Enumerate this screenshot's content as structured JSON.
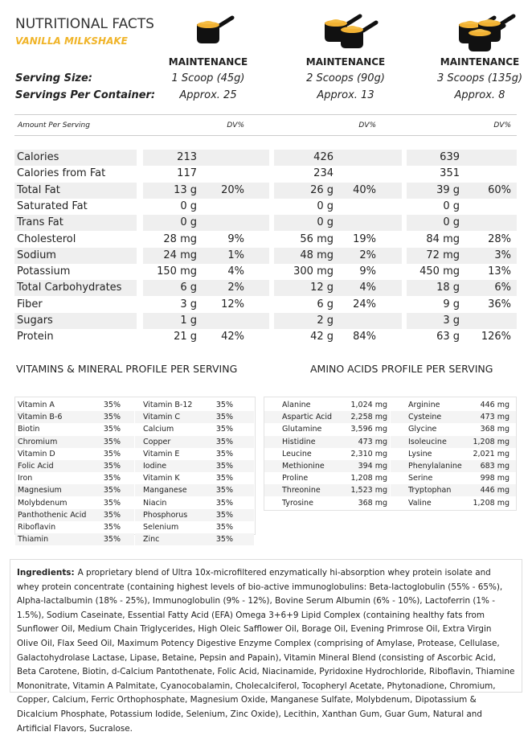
{
  "header": {
    "title": "NUTRITIONAL FACTS",
    "subtitle": "VANILLA MILKSHAKE"
  },
  "serving_labels": {
    "serving_size": "Serving Size:",
    "servings_per_container": "Servings Per Container:"
  },
  "columns": [
    {
      "label": "MAINTENANCE",
      "serving_size": "1 Scoop (45g)",
      "servings_per_container": "Approx. 25"
    },
    {
      "label": "MAINTENANCE",
      "serving_size": "2 Scoops (90g)",
      "servings_per_container": "Approx. 13"
    },
    {
      "label": "MAINTENANCE",
      "serving_size": "3 Scoops (135g)",
      "servings_per_container": "Approx. 8"
    }
  ],
  "facts": {
    "amount_header": "Amount Per Serving",
    "dv_headers": [
      "DV%",
      "DV%",
      "DV%"
    ],
    "rows": [
      {
        "name": "Calories",
        "values": [
          {
            "amount": "213"
          },
          {
            "amount": "426"
          },
          {
            "amount": "639"
          }
        ]
      },
      {
        "name": "Calories from Fat",
        "values": [
          {
            "amount": "117"
          },
          {
            "amount": "234"
          },
          {
            "amount": "351"
          }
        ]
      },
      {
        "name": "Total Fat",
        "values": [
          {
            "amount": "13 g",
            "dv": "20%"
          },
          {
            "amount": "26 g",
            "dv": "40%"
          },
          {
            "amount": "39 g",
            "dv": "60%"
          }
        ]
      },
      {
        "name": "Saturated Fat",
        "values": [
          {
            "amount": "0 g"
          },
          {
            "amount": "0 g"
          },
          {
            "amount": "0 g"
          }
        ]
      },
      {
        "name": "Trans Fat",
        "values": [
          {
            "amount": "0 g"
          },
          {
            "amount": "0 g"
          },
          {
            "amount": "0 g"
          }
        ]
      },
      {
        "name": "Cholesterol",
        "values": [
          {
            "amount": "28 mg",
            "dv": "9%"
          },
          {
            "amount": "56 mg",
            "dv": "19%"
          },
          {
            "amount": "84 mg",
            "dv": "28%"
          }
        ]
      },
      {
        "name": "Sodium",
        "values": [
          {
            "amount": "24 mg",
            "dv": "1%"
          },
          {
            "amount": "48 mg",
            "dv": "2%"
          },
          {
            "amount": "72 mg",
            "dv": "3%"
          }
        ]
      },
      {
        "name": "Potassium",
        "values": [
          {
            "amount": "150 mg",
            "dv": "4%"
          },
          {
            "amount": "300 mg",
            "dv": "9%"
          },
          {
            "amount": "450 mg",
            "dv": "13%"
          }
        ]
      },
      {
        "name": "Total Carbohydrates",
        "values": [
          {
            "amount": "6 g",
            "dv": "2%"
          },
          {
            "amount": "12 g",
            "dv": "4%"
          },
          {
            "amount": "18 g",
            "dv": "6%"
          }
        ]
      },
      {
        "name": "Fiber",
        "values": [
          {
            "amount": "3 g",
            "dv": "12%"
          },
          {
            "amount": "6 g",
            "dv": "24%"
          },
          {
            "amount": "9 g",
            "dv": "36%"
          }
        ]
      },
      {
        "name": "Sugars",
        "values": [
          {
            "amount": "1 g"
          },
          {
            "amount": "2 g"
          },
          {
            "amount": "3 g"
          }
        ]
      },
      {
        "name": "Protein",
        "values": [
          {
            "amount": "21 g",
            "dv": "42%"
          },
          {
            "amount": "42 g",
            "dv": "84%"
          },
          {
            "amount": "63 g",
            "dv": "126%"
          }
        ]
      }
    ]
  },
  "vitamins": {
    "title": "VITAMINS & MINERAL PROFILE PER SERVING",
    "columns": [
      [
        [
          "Vitamin A",
          "35%"
        ],
        [
          "Vitamin B-6",
          "35%"
        ],
        [
          "Biotin",
          "35%"
        ],
        [
          "Chromium",
          "35%"
        ],
        [
          "Vitamin D",
          "35%"
        ],
        [
          "Folic Acid",
          "35%"
        ],
        [
          "Iron",
          "35%"
        ],
        [
          "Magnesium",
          "35%"
        ],
        [
          "Molybdenum",
          "35%"
        ],
        [
          "Panthothenic Acid",
          "35%"
        ],
        [
          "Riboflavin",
          "35%"
        ],
        [
          "Thiamin",
          "35%"
        ]
      ],
      [
        [
          "Vitamin B-12",
          "35%"
        ],
        [
          "Vitamin C",
          "35%"
        ],
        [
          "Calcium",
          "35%"
        ],
        [
          "Copper",
          "35%"
        ],
        [
          "Vitamin E",
          "35%"
        ],
        [
          "Iodine",
          "35%"
        ],
        [
          "Vitamin K",
          "35%"
        ],
        [
          "Manganese",
          "35%"
        ],
        [
          "Niacin",
          "35%"
        ],
        [
          "Phosphorus",
          "35%"
        ],
        [
          "Selenium",
          "35%"
        ],
        [
          "Zinc",
          "35%"
        ]
      ]
    ]
  },
  "amino_acids": {
    "title": "AMINO ACIDS PROFILE PER SERVING",
    "columns": [
      [
        [
          "Alanine",
          "1,024 mg"
        ],
        [
          "Aspartic Acid",
          "2,258 mg"
        ],
        [
          "Glutamine",
          "3,596 mg"
        ],
        [
          "Histidine",
          "473 mg"
        ],
        [
          "Leucine",
          "2,310 mg"
        ],
        [
          "Methionine",
          "394 mg"
        ],
        [
          "Proline",
          "1,208 mg"
        ],
        [
          "Threonine",
          "1,523 mg"
        ],
        [
          "Tyrosine",
          "368 mg"
        ]
      ],
      [
        [
          "Arginine",
          "446 mg"
        ],
        [
          "Cysteine",
          "473 mg"
        ],
        [
          "Glycine",
          "368 mg"
        ],
        [
          "Isoleucine",
          "1,208 mg"
        ],
        [
          "Lysine",
          "2,021 mg"
        ],
        [
          "Phenylalanine",
          "683 mg"
        ],
        [
          "Serine",
          "998 mg"
        ],
        [
          "Tryptophan",
          "446 mg"
        ],
        [
          "Valine",
          "1,208 mg"
        ]
      ]
    ]
  },
  "ingredients": {
    "label": "Ingredients:",
    "text": "A proprietary blend of Ultra 10x-microfiltered enzymatically hi-absorption whey protein isolate and whey protein concentrate (containing highest levels of bio-active immunoglobulins:  Beta-lactoglobulin (55% - 65%), Alpha-lactalbumin (18% - 25%), Immunoglobulin (9% - 12%), Bovine Serum Albumin (6% - 10%), Lactoferrin (1% - 1.5%), Sodium Caseinate, Essential Fatty Acid (EFA) Omega 3+6+9 Lipid Complex (containing healthy fats from Sunflower Oil, Medium Chain Triglycerides, High Oleic Safflower Oil, Borage Oil, Evening Primrose Oil, Extra Virgin Olive Oil, Flax Seed Oil, Maximum Potency Digestive Enzyme Complex (comprising of Amylase, Protease, Cellulase, Galactohydrolase Lactase, Lipase, Betaine, Pepsin and Papain), Vitamin Mineral Blend (consisting of Ascorbic Acid, Beta Carotene, Biotin, d-Calcium Pantothenate, Folic Acid, Niacinamide, Pyridoxine Hydrochloride, Riboflavin, Thiamine Mononitrate, Vitamin A Palmitate, Cyanocobalamin, Cholecalciferol, Tocopheryl Acetate, Phytonadione, Chromium, Copper, Calcium, Ferric Orthophosphate, Magnesium Oxide, Manganese Sulfate, Molybdenum, Dipotassium & Dicalcium Phosphate, Potassium Iodide, Selenium, Zinc Oxide), Lecithin, Xanthan Gum, Guar Gum, Natural and Artificial Flavors, Sucralose."
  }
}
